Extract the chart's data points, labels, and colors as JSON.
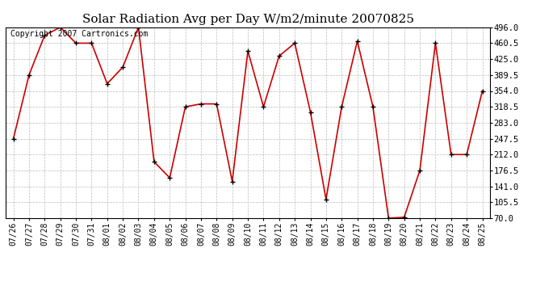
{
  "title": "Solar Radiation Avg per Day W/m2/minute 20070825",
  "copyright": "Copyright 2007 Cartronics.com",
  "dates": [
    "07/26",
    "07/27",
    "07/28",
    "07/29",
    "07/30",
    "07/31",
    "08/01",
    "08/02",
    "08/03",
    "08/04",
    "08/05",
    "08/06",
    "08/07",
    "08/08",
    "08/09",
    "08/10",
    "08/11",
    "08/12",
    "08/13",
    "08/14",
    "08/15",
    "08/16",
    "08/17",
    "08/18",
    "08/19",
    "08/20",
    "08/21",
    "08/22",
    "08/23",
    "08/24",
    "08/25"
  ],
  "values": [
    247.5,
    389.5,
    478.0,
    496.0,
    460.5,
    460.5,
    370.0,
    407.0,
    496.0,
    196.0,
    160.0,
    318.5,
    325.0,
    325.0,
    152.0,
    443.0,
    318.5,
    432.0,
    460.5,
    307.0,
    112.0,
    318.5,
    465.0,
    318.5,
    70.0,
    72.0,
    176.5,
    460.5,
    212.0,
    212.0,
    354.0
  ],
  "line_color": "#cc0000",
  "marker_color": "#000000",
  "bg_color": "#ffffff",
  "grid_color": "#bbbbbb",
  "ylim_min": 70.0,
  "ylim_max": 496.0,
  "yticks": [
    70.0,
    105.5,
    141.0,
    176.5,
    212.0,
    247.5,
    283.0,
    318.5,
    354.0,
    389.5,
    425.0,
    460.5,
    496.0
  ],
  "title_fontsize": 11,
  "copyright_fontsize": 7,
  "tick_fontsize": 7,
  "ytick_fontsize": 7.5
}
